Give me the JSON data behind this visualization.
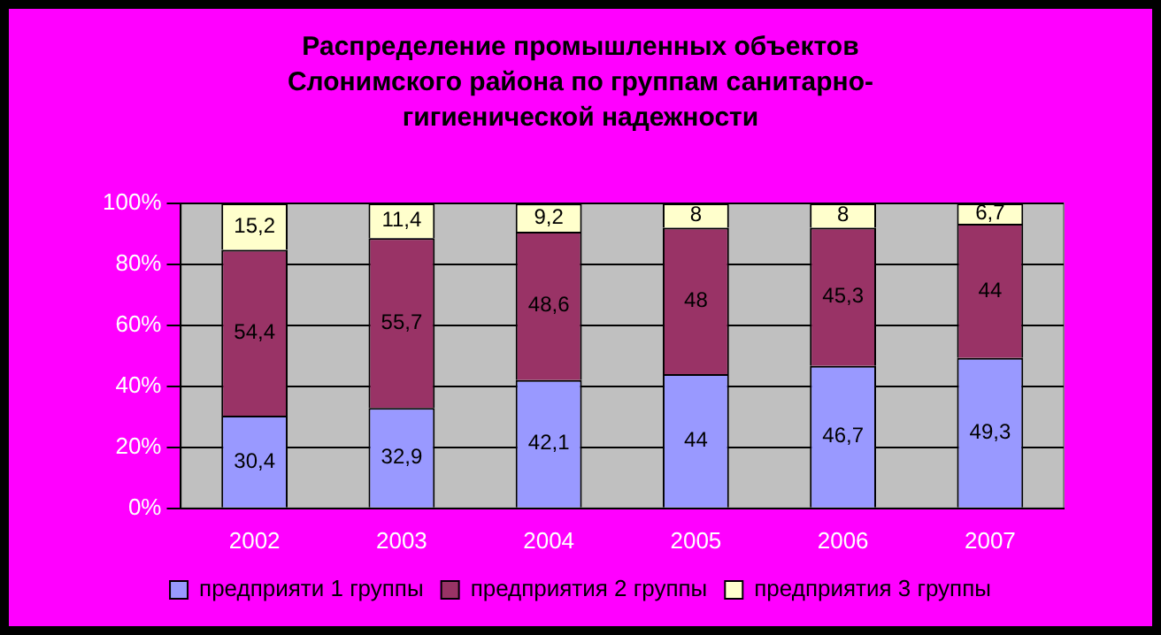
{
  "chart_data": {
    "type": "bar",
    "stacked": true,
    "title": "Распределение промышленных объектов Слонимского района по группам санитарно-гигиенической надежности",
    "categories": [
      "2002",
      "2003",
      "2004",
      "2005",
      "2006",
      "2007"
    ],
    "series": [
      {
        "name": "предприяти 1 группы",
        "color": "#9999ff",
        "values": [
          30.4,
          32.9,
          42.1,
          44,
          46.7,
          49.3
        ],
        "value_labels": [
          "30,4",
          "32,9",
          "42,1",
          "44",
          "46,7",
          "49,3"
        ]
      },
      {
        "name": "предприятия 2 группы",
        "color": "#993366",
        "values": [
          54.4,
          55.7,
          48.6,
          48,
          45.3,
          44
        ],
        "value_labels": [
          "54,4",
          "55,7",
          "48,6",
          "48",
          "45,3",
          "44"
        ]
      },
      {
        "name": "предприятия 3 группы",
        "color": "#ffffcc",
        "values": [
          15.2,
          11.4,
          9.2,
          8,
          8,
          6.7
        ],
        "value_labels": [
          "15,2",
          "11,4",
          "9,2",
          "8",
          "8",
          "6,7"
        ]
      }
    ],
    "ylim": [
      0,
      100
    ],
    "yticks": [
      {
        "value": 0,
        "label": "0%"
      },
      {
        "value": 20,
        "label": "20%"
      },
      {
        "value": 40,
        "label": "40%"
      },
      {
        "value": 60,
        "label": "60%"
      },
      {
        "value": 80,
        "label": "80%"
      },
      {
        "value": 100,
        "label": "100%"
      }
    ],
    "grid": "y",
    "legend": "bottom"
  }
}
